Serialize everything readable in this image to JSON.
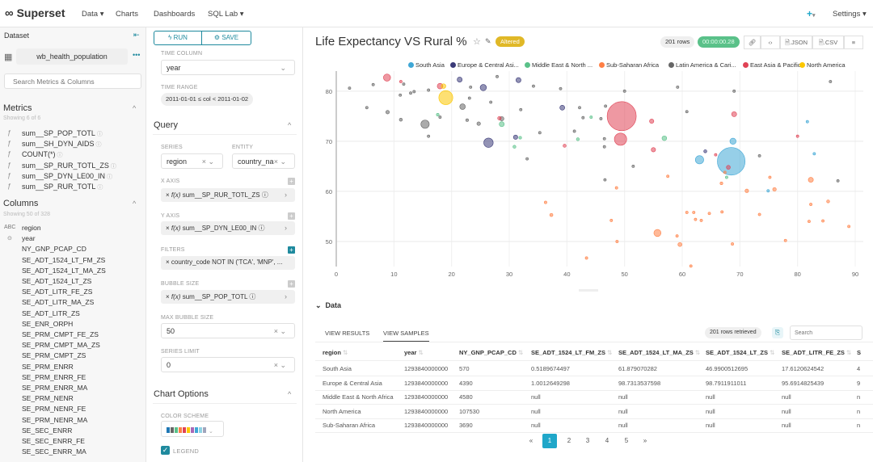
{
  "nav": {
    "brand": "Superset",
    "items": [
      "Data",
      "Charts",
      "Dashboards",
      "SQL Lab"
    ],
    "settings": "Settings",
    "accent": "#20a7c9"
  },
  "dataset": {
    "label": "Dataset",
    "name": "wb_health_population",
    "search_placeholder": "Search Metrics & Columns"
  },
  "metrics": {
    "title": "Metrics",
    "showing": "Showing 6 of 6",
    "items": [
      "sum__SP_POP_TOTL",
      "sum__SH_DYN_AIDS",
      "COUNT(*)",
      "sum__SP_RUR_TOTL_ZS",
      "sum__SP_DYN_LE00_IN",
      "sum__SP_RUR_TOTL"
    ]
  },
  "columns": {
    "title": "Columns",
    "showing": "Showing 50 of 328",
    "items": [
      {
        "type": "ABC",
        "name": "region"
      },
      {
        "type": "time",
        "name": "year"
      },
      {
        "name": "NY_GNP_PCAP_CD"
      },
      {
        "name": "SE_ADT_1524_LT_FM_ZS"
      },
      {
        "name": "SE_ADT_1524_LT_MA_ZS"
      },
      {
        "name": "SE_ADT_1524_LT_ZS"
      },
      {
        "name": "SE_ADT_LITR_FE_ZS"
      },
      {
        "name": "SE_ADT_LITR_MA_ZS"
      },
      {
        "name": "SE_ADT_LITR_ZS"
      },
      {
        "name": "SE_ENR_ORPH"
      },
      {
        "name": "SE_PRM_CMPT_FE_ZS"
      },
      {
        "name": "SE_PRM_CMPT_MA_ZS"
      },
      {
        "name": "SE_PRM_CMPT_ZS"
      },
      {
        "name": "SE_PRM_ENRR"
      },
      {
        "name": "SE_PRM_ENRR_FE"
      },
      {
        "name": "SE_PRM_ENRR_MA"
      },
      {
        "name": "SE_PRM_NENR"
      },
      {
        "name": "SE_PRM_NENR_FE"
      },
      {
        "name": "SE_PRM_NENR_MA"
      },
      {
        "name": "SE_SEC_ENRR"
      },
      {
        "name": "SE_SEC_ENRR_FE"
      },
      {
        "name": "SE_SEC_ENRR_MA"
      }
    ]
  },
  "controls": {
    "run": "RUN",
    "save": "SAVE",
    "time_column_label": "TIME COLUMN",
    "time_column": "year",
    "time_range_label": "TIME RANGE",
    "time_range": "2011-01-01 ≤ col < 2011-01-02",
    "query_title": "Query",
    "series_label": "SERIES",
    "series": "region",
    "entity_label": "ENTITY",
    "entity": "country_na",
    "x_axis_label": "X AXIS",
    "x_axis": "sum__SP_RUR_TOTL_ZS",
    "y_axis_label": "Y AXIS",
    "y_axis": "sum__SP_DYN_LE00_IN",
    "filters_label": "FILTERS",
    "filter": "country_code NOT IN ('TCA', 'MNP', ...",
    "bubble_size_label": "BUBBLE SIZE",
    "bubble_size": "sum__SP_POP_TOTL",
    "max_bubble_label": "MAX BUBBLE SIZE",
    "max_bubble": "50",
    "series_limit_label": "SERIES LIMIT",
    "series_limit": "0",
    "chart_options_title": "Chart Options",
    "color_scheme_label": "COLOR SCHEME",
    "legend_label": "LEGEND",
    "legend_checked": true
  },
  "header": {
    "title": "Life Expectancy VS Rural %",
    "badge": "Altered",
    "rows": "201 rows",
    "timer": "00:00:00.28",
    "json": ".JSON",
    "csv": ".CSV"
  },
  "chart_data": {
    "type": "scatter",
    "subtype": "bubble",
    "xlim": [
      0,
      90
    ],
    "ylim": [
      45,
      84
    ],
    "x_ticks": [
      "0",
      "10",
      "20",
      "30",
      "40",
      "50",
      "60",
      "70",
      "80",
      "90"
    ],
    "y_ticks": [
      "50",
      "60",
      "70",
      "80"
    ],
    "grid": true,
    "legend_placement": "top",
    "series": [
      {
        "name": "South Asia",
        "color": "#3fa7d6",
        "points": [
          [
            68.5,
            66,
            1221
          ],
          [
            68.8,
            70,
            60
          ],
          [
            63,
            66.3,
            110
          ],
          [
            81.7,
            73.9,
            3
          ],
          [
            82.9,
            67.5,
            7
          ],
          [
            74.9,
            60.1,
            10
          ]
        ]
      },
      {
        "name": "Europe & Central Asi...",
        "color": "#3a3a78",
        "points": [
          [
            26.4,
            69.7,
            140
          ],
          [
            25.5,
            80.7,
            62
          ],
          [
            31.6,
            82.2,
            40
          ],
          [
            21.4,
            82.3,
            40
          ],
          [
            39.2,
            76.7,
            38
          ],
          [
            31.1,
            70.8,
            30
          ],
          [
            64,
            68,
            15
          ]
        ]
      },
      {
        "name": "Middle East & North ...",
        "color": "#5ac189",
        "points": [
          [
            28.7,
            73.4,
            40
          ],
          [
            17.6,
            75.3,
            12
          ],
          [
            56.9,
            70.6,
            35
          ],
          [
            41.9,
            70.4,
            14
          ],
          [
            31.9,
            70.7,
            12
          ],
          [
            30.9,
            68.9,
            14
          ],
          [
            67.7,
            62.8,
            8
          ],
          [
            44.2,
            74.8,
            5
          ]
        ]
      },
      {
        "name": "Sub-Saharan Africa",
        "color": "#ff7f44",
        "points": [
          [
            37.3,
            55.3,
            16
          ],
          [
            48.6,
            60.7,
            9
          ],
          [
            47.7,
            54.2,
            8
          ],
          [
            48.7,
            50,
            8
          ],
          [
            55.7,
            51.7,
            80
          ],
          [
            59.6,
            49.4,
            25
          ],
          [
            59.1,
            51.1,
            8
          ],
          [
            60.8,
            55.8,
            6
          ],
          [
            62,
            55.8,
            4
          ],
          [
            62.3,
            54.4,
            5
          ],
          [
            63.3,
            54.2,
            8
          ],
          [
            64.7,
            55.6,
            4
          ],
          [
            66.9,
            55.9,
            6
          ],
          [
            66.8,
            61.6,
            12
          ],
          [
            67.4,
            63.8,
            10
          ],
          [
            71.2,
            60.1,
            20
          ],
          [
            76,
            60.4,
            20
          ],
          [
            82.3,
            62.3,
            40
          ],
          [
            82.3,
            57.4,
            8
          ],
          [
            85.3,
            58,
            14
          ],
          [
            84.4,
            54.1,
            8
          ],
          [
            82,
            54,
            5
          ],
          [
            88.9,
            53,
            4
          ],
          [
            77.9,
            50.2,
            4
          ],
          [
            68.7,
            49.5,
            8
          ],
          [
            73.4,
            55.4,
            5
          ],
          [
            75.2,
            62.8,
            4
          ],
          [
            57.5,
            63,
            4
          ],
          [
            36.3,
            57.8,
            2
          ],
          [
            61.5,
            45.1,
            1
          ],
          [
            43.4,
            46.7,
            1
          ]
        ]
      },
      {
        "name": "Latin America & Cari...",
        "color": "#666666",
        "points": [
          [
            15.4,
            73.4,
            110
          ],
          [
            21.9,
            76.9,
            50
          ],
          [
            8.9,
            75.8,
            20
          ],
          [
            11.2,
            74.3,
            15
          ],
          [
            22.7,
            74.2,
            12
          ],
          [
            24.7,
            73.5,
            20
          ],
          [
            28.7,
            74.5,
            30
          ],
          [
            46.5,
            68.9,
            6
          ],
          [
            46.6,
            62.3,
            4
          ],
          [
            87,
            62.1,
            4
          ],
          [
            73.4,
            67.1,
            4
          ],
          [
            2.3,
            80.6,
            4
          ],
          [
            11.1,
            79.2,
            5
          ],
          [
            12.9,
            79.6,
            2
          ],
          [
            23.3,
            80.8,
            3
          ],
          [
            27.9,
            82.9,
            2
          ],
          [
            34.2,
            81,
            2
          ],
          [
            38.9,
            80.5,
            3
          ],
          [
            26.8,
            77.8,
            3
          ],
          [
            32,
            76.3,
            1
          ],
          [
            42.2,
            76.7,
            1
          ],
          [
            45.9,
            74.5,
            2
          ],
          [
            46.7,
            77,
            1
          ],
          [
            42.8,
            74.7,
            1
          ],
          [
            51.5,
            65,
            1
          ],
          [
            60.8,
            75.9,
            2
          ],
          [
            69,
            80,
            1
          ],
          [
            85.7,
            81.9,
            1
          ],
          [
            33.1,
            66.5,
            2
          ],
          [
            5.3,
            76.7,
            1
          ],
          [
            59.2,
            80.8,
            1
          ],
          [
            50,
            80,
            1
          ],
          [
            16,
            71,
            1
          ],
          [
            35.3,
            71.7,
            1
          ],
          [
            41.3,
            72,
            2
          ],
          [
            46.5,
            70.5,
            3
          ],
          [
            13.5,
            79.9,
            2
          ],
          [
            18,
            74.8,
            1
          ],
          [
            6.4,
            81.3,
            1
          ],
          [
            11.7,
            81.4,
            4
          ],
          [
            16,
            80.2,
            1
          ],
          [
            23.1,
            78.6,
            2
          ]
        ]
      },
      {
        "name": "East Asia & Pacific",
        "color": "#e04355",
        "points": [
          [
            49.5,
            75,
            1344
          ],
          [
            49.3,
            70.4,
            240
          ],
          [
            8.8,
            82.7,
            80
          ],
          [
            18,
            81,
            50
          ],
          [
            55,
            68.3,
            30
          ],
          [
            54.7,
            74,
            30
          ],
          [
            69,
            75.4,
            40
          ],
          [
            39.6,
            69.1,
            15
          ],
          [
            68,
            64.8,
            25
          ],
          [
            28.3,
            74.6,
            20
          ],
          [
            11.2,
            81.9,
            8
          ],
          [
            80,
            71,
            4
          ],
          [
            65.8,
            67.3,
            3
          ]
        ]
      },
      {
        "name": "North America",
        "color": "#fcc700",
        "points": [
          [
            19,
            78.7,
            311
          ],
          [
            18.6,
            81,
            34
          ]
        ]
      }
    ]
  },
  "data_panel": {
    "title": "Data",
    "tabs": [
      "VIEW RESULTS",
      "VIEW SAMPLES"
    ],
    "active_tab": 1,
    "rows_retrieved": "201 rows retrieved",
    "search_placeholder": "Search",
    "columns": [
      "region",
      "year",
      "NY_GNP_PCAP_CD",
      "SE_ADT_1524_LT_FM_ZS",
      "SE_ADT_1524_LT_MA_ZS",
      "SE_ADT_1524_LT_ZS",
      "SE_ADT_LITR_FE_ZS",
      "S"
    ],
    "rows": [
      [
        "South Asia",
        "1293840000000",
        "570",
        "0.5189674497",
        "61.879070282",
        "46.9900512695",
        "17.6120624542",
        "4"
      ],
      [
        "Europe & Central Asia",
        "1293840000000",
        "4390",
        "1.0012649298",
        "98.7313537598",
        "98.7911911011",
        "95.6914825439",
        "9"
      ],
      [
        "Middle East & North Africa",
        "1293840000000",
        "4580",
        "null",
        "null",
        "null",
        "null",
        "n"
      ],
      [
        "North America",
        "1293840000000",
        "107530",
        "null",
        "null",
        "null",
        "null",
        "n"
      ],
      [
        "Sub-Saharan Africa",
        "1293840000000",
        "3690",
        "null",
        "null",
        "null",
        "null",
        "n"
      ]
    ],
    "pages": [
      "«",
      "1",
      "2",
      "3",
      "4",
      "5",
      "»"
    ],
    "current_page": "1"
  }
}
